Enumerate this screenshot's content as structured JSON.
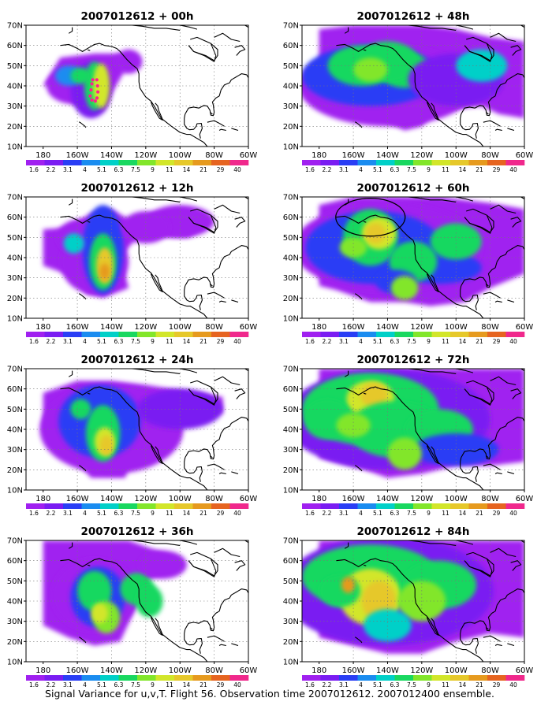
{
  "figure": {
    "caption": "Signal Variance for u,v,T. Flight 56. Observation time 2007012612. 2007012400 ensemble."
  },
  "colors": {
    "scale": [
      "#a020f0",
      "#7a1cf2",
      "#2a3ef5",
      "#1a8cf0",
      "#00d0c8",
      "#19d860",
      "#82e62a",
      "#d2e62a",
      "#e6c82a",
      "#e69a1e",
      "#e66420",
      "#f0288c"
    ],
    "land_outline": "#000000",
    "flight_track": "#ff2090"
  },
  "axes": {
    "y_ticks": [
      "70N",
      "60N",
      "50N",
      "40N",
      "30N",
      "20N",
      "10N"
    ],
    "x_ticks": [
      "180",
      "160W",
      "140W",
      "120W",
      "100W",
      "80W",
      "60W"
    ],
    "colorbar_labels": [
      "1.6",
      "2.2",
      "3.1",
      "4",
      "5.1",
      "6.3",
      "7.5",
      "9",
      "11",
      "14",
      "21",
      "29",
      "40"
    ]
  },
  "panels": [
    {
      "title": "2007012612 + 00h",
      "lead_hours": 0
    },
    {
      "title": "2007012612 + 48h",
      "lead_hours": 48
    },
    {
      "title": "2007012612 + 12h",
      "lead_hours": 12
    },
    {
      "title": "2007012612 + 60h",
      "lead_hours": 60
    },
    {
      "title": "2007012612 + 24h",
      "lead_hours": 24
    },
    {
      "title": "2007012612 + 72h",
      "lead_hours": 72
    },
    {
      "title": "2007012612 + 36h",
      "lead_hours": 36
    },
    {
      "title": "2007012612 + 84h",
      "lead_hours": 84
    }
  ]
}
